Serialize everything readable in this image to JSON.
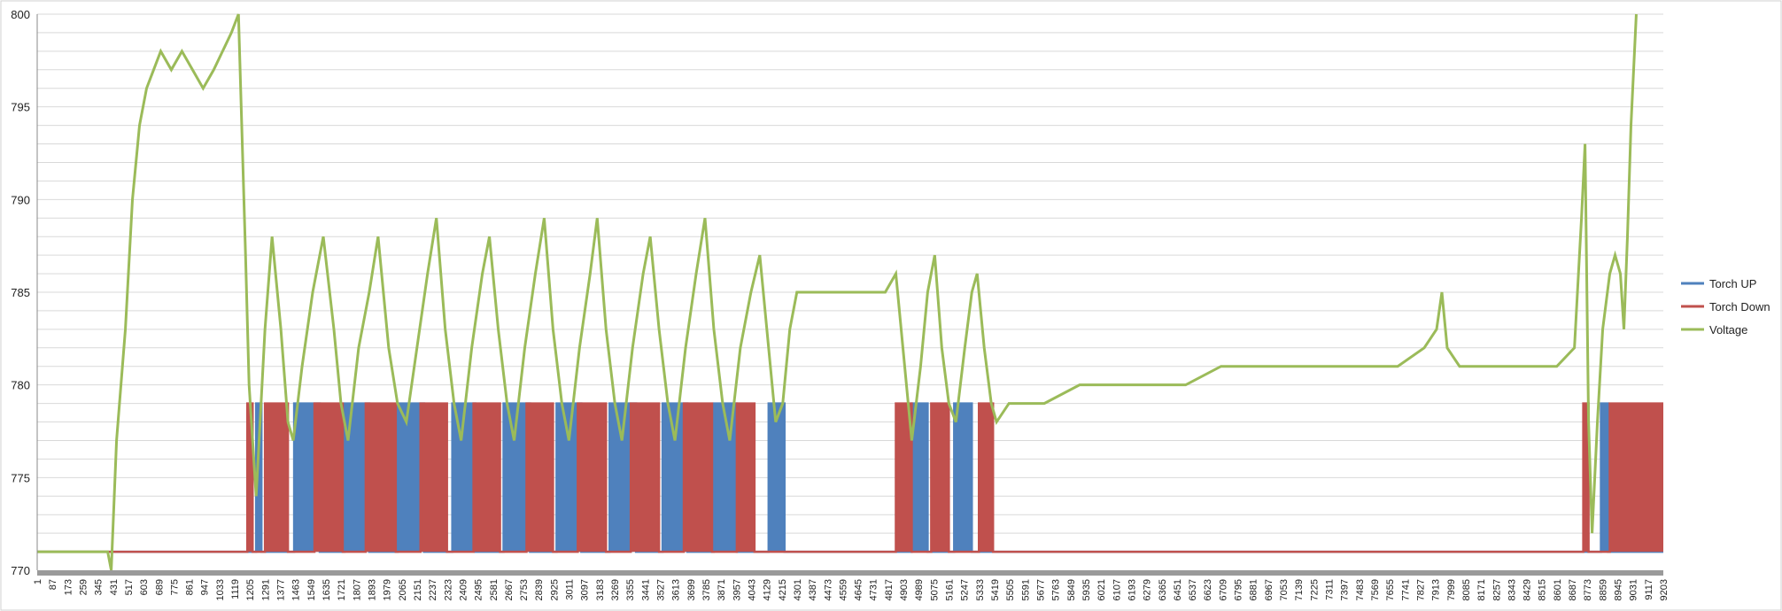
{
  "chart_data": {
    "type": "line",
    "title": "",
    "xlabel": "",
    "ylabel": "",
    "ylim": [
      770,
      800
    ],
    "yticks": [
      770,
      775,
      780,
      785,
      790,
      795,
      800
    ],
    "xlim": [
      1,
      9203
    ],
    "xticks": [
      1,
      87,
      173,
      259,
      345,
      431,
      517,
      603,
      689,
      775,
      861,
      947,
      1033,
      1119,
      1205,
      1291,
      1377,
      1463,
      1549,
      1635,
      1721,
      1807,
      1893,
      1979,
      2065,
      2151,
      2237,
      2323,
      2409,
      2495,
      2581,
      2667,
      2753,
      2839,
      2925,
      3011,
      3097,
      3183,
      3269,
      3355,
      3441,
      3527,
      3613,
      3699,
      3785,
      3871,
      3957,
      4043,
      4129,
      4215,
      4301,
      4387,
      4473,
      4559,
      4645,
      4731,
      4817,
      4903,
      4989,
      5075,
      5161,
      5247,
      5333,
      5419,
      5505,
      5591,
      5677,
      5763,
      5849,
      5935,
      6021,
      6107,
      6193,
      6279,
      6365,
      6451,
      6537,
      6623,
      6709,
      6795,
      6881,
      6967,
      7053,
      7139,
      7225,
      7311,
      7397,
      7483,
      7569,
      7655,
      7741,
      7827,
      7913,
      7999,
      8085,
      8171,
      8257,
      8343,
      8429,
      8515,
      8601,
      8687,
      8773,
      8859,
      8945,
      9031,
      9117,
      9203
    ],
    "grid": true,
    "legend": "right",
    "series": [
      {
        "name": "Torch UP",
        "color": "#4f81bd",
        "points": [
          [
            1,
            771
          ],
          [
            1240,
            771
          ],
          [
            1240,
            779
          ],
          [
            1270,
            779
          ],
          [
            1270,
            771
          ],
          [
            1455,
            771
          ],
          [
            1455,
            779
          ],
          [
            1600,
            779
          ],
          [
            1600,
            771
          ],
          [
            1740,
            771
          ],
          [
            1740,
            779
          ],
          [
            1880,
            779
          ],
          [
            1880,
            771
          ],
          [
            2040,
            771
          ],
          [
            2040,
            779
          ],
          [
            2190,
            779
          ],
          [
            2190,
            771
          ],
          [
            2350,
            771
          ],
          [
            2350,
            779
          ],
          [
            2480,
            779
          ],
          [
            2480,
            771
          ],
          [
            2640,
            771
          ],
          [
            2640,
            779
          ],
          [
            2790,
            779
          ],
          [
            2790,
            771
          ],
          [
            2940,
            771
          ],
          [
            2940,
            779
          ],
          [
            3080,
            779
          ],
          [
            3080,
            771
          ],
          [
            3240,
            771
          ],
          [
            3240,
            779
          ],
          [
            3390,
            779
          ],
          [
            3390,
            771
          ],
          [
            3540,
            771
          ],
          [
            3540,
            779
          ],
          [
            3680,
            779
          ],
          [
            3680,
            771
          ],
          [
            3830,
            771
          ],
          [
            3830,
            779
          ],
          [
            3960,
            779
          ],
          [
            3960,
            771
          ],
          [
            4140,
            771
          ],
          [
            4140,
            779
          ],
          [
            4230,
            779
          ],
          [
            4230,
            771
          ],
          [
            4950,
            771
          ],
          [
            4950,
            779
          ],
          [
            5040,
            779
          ],
          [
            5040,
            771
          ],
          [
            5190,
            771
          ],
          [
            5190,
            779
          ],
          [
            5290,
            779
          ],
          [
            5290,
            771
          ],
          [
            8850,
            771
          ],
          [
            8850,
            779
          ],
          [
            8890,
            779
          ],
          [
            8890,
            771
          ],
          [
            9203,
            771
          ]
        ]
      },
      {
        "name": "Torch Down",
        "color": "#c0504d",
        "points": [
          [
            1,
            771
          ],
          [
            1190,
            771
          ],
          [
            1190,
            779
          ],
          [
            1220,
            779
          ],
          [
            1220,
            771
          ],
          [
            1290,
            771
          ],
          [
            1290,
            779
          ],
          [
            1420,
            779
          ],
          [
            1420,
            771
          ],
          [
            1570,
            771
          ],
          [
            1570,
            779
          ],
          [
            1730,
            779
          ],
          [
            1730,
            771
          ],
          [
            1860,
            771
          ],
          [
            1860,
            779
          ],
          [
            2030,
            779
          ],
          [
            2030,
            771
          ],
          [
            2170,
            771
          ],
          [
            2170,
            779
          ],
          [
            2320,
            779
          ],
          [
            2320,
            771
          ],
          [
            2470,
            771
          ],
          [
            2470,
            779
          ],
          [
            2620,
            779
          ],
          [
            2620,
            771
          ],
          [
            2770,
            771
          ],
          [
            2770,
            779
          ],
          [
            2920,
            779
          ],
          [
            2920,
            771
          ],
          [
            3060,
            771
          ],
          [
            3060,
            779
          ],
          [
            3220,
            779
          ],
          [
            3220,
            771
          ],
          [
            3360,
            771
          ],
          [
            3360,
            779
          ],
          [
            3520,
            779
          ],
          [
            3520,
            771
          ],
          [
            3660,
            771
          ],
          [
            3660,
            779
          ],
          [
            3820,
            779
          ],
          [
            3820,
            771
          ],
          [
            3960,
            771
          ],
          [
            3960,
            779
          ],
          [
            4060,
            779
          ],
          [
            4060,
            771
          ],
          [
            4860,
            771
          ],
          [
            4860,
            779
          ],
          [
            4950,
            779
          ],
          [
            4950,
            771
          ],
          [
            5060,
            771
          ],
          [
            5060,
            779
          ],
          [
            5160,
            779
          ],
          [
            5160,
            771
          ],
          [
            5330,
            771
          ],
          [
            5330,
            779
          ],
          [
            5410,
            779
          ],
          [
            5410,
            771
          ],
          [
            8750,
            771
          ],
          [
            8750,
            779
          ],
          [
            8780,
            779
          ],
          [
            8780,
            771
          ],
          [
            8900,
            771
          ],
          [
            8900,
            779
          ],
          [
            9203,
            779
          ]
        ]
      },
      {
        "name": "Voltage",
        "color": "#9bbb59",
        "points": [
          [
            1,
            771
          ],
          [
            400,
            771
          ],
          [
            420,
            770
          ],
          [
            450,
            777
          ],
          [
            500,
            783
          ],
          [
            540,
            790
          ],
          [
            580,
            794
          ],
          [
            620,
            796
          ],
          [
            660,
            797
          ],
          [
            700,
            798
          ],
          [
            760,
            797
          ],
          [
            820,
            798
          ],
          [
            880,
            797
          ],
          [
            940,
            796
          ],
          [
            1000,
            797
          ],
          [
            1050,
            798
          ],
          [
            1100,
            799
          ],
          [
            1140,
            800
          ],
          [
            1180,
            787
          ],
          [
            1200,
            780
          ],
          [
            1240,
            774
          ],
          [
            1290,
            783
          ],
          [
            1330,
            788
          ],
          [
            1380,
            783
          ],
          [
            1420,
            778
          ],
          [
            1450,
            777
          ],
          [
            1500,
            781
          ],
          [
            1560,
            785
          ],
          [
            1620,
            788
          ],
          [
            1680,
            783
          ],
          [
            1720,
            779
          ],
          [
            1760,
            777
          ],
          [
            1820,
            782
          ],
          [
            1880,
            785
          ],
          [
            1930,
            788
          ],
          [
            1990,
            782
          ],
          [
            2040,
            779
          ],
          [
            2090,
            778
          ],
          [
            2150,
            782
          ],
          [
            2210,
            786
          ],
          [
            2260,
            789
          ],
          [
            2310,
            783
          ],
          [
            2360,
            779
          ],
          [
            2400,
            777
          ],
          [
            2460,
            782
          ],
          [
            2520,
            786
          ],
          [
            2560,
            788
          ],
          [
            2610,
            783
          ],
          [
            2660,
            779
          ],
          [
            2700,
            777
          ],
          [
            2760,
            782
          ],
          [
            2820,
            786
          ],
          [
            2870,
            789
          ],
          [
            2920,
            783
          ],
          [
            2970,
            779
          ],
          [
            3010,
            777
          ],
          [
            3070,
            782
          ],
          [
            3130,
            786
          ],
          [
            3170,
            789
          ],
          [
            3220,
            783
          ],
          [
            3270,
            779
          ],
          [
            3310,
            777
          ],
          [
            3370,
            782
          ],
          [
            3430,
            786
          ],
          [
            3470,
            788
          ],
          [
            3520,
            783
          ],
          [
            3570,
            779
          ],
          [
            3610,
            777
          ],
          [
            3670,
            782
          ],
          [
            3730,
            786
          ],
          [
            3780,
            789
          ],
          [
            3830,
            783
          ],
          [
            3880,
            779
          ],
          [
            3920,
            777
          ],
          [
            3980,
            782
          ],
          [
            4040,
            785
          ],
          [
            4090,
            787
          ],
          [
            4140,
            782
          ],
          [
            4180,
            778
          ],
          [
            4220,
            779
          ],
          [
            4260,
            783
          ],
          [
            4300,
            785
          ],
          [
            4400,
            785
          ],
          [
            4500,
            785
          ],
          [
            4600,
            785
          ],
          [
            4700,
            785
          ],
          [
            4800,
            785
          ],
          [
            4860,
            786
          ],
          [
            4900,
            782
          ],
          [
            4950,
            777
          ],
          [
            5000,
            781
          ],
          [
            5040,
            785
          ],
          [
            5080,
            787
          ],
          [
            5120,
            782
          ],
          [
            5160,
            779
          ],
          [
            5200,
            778
          ],
          [
            5250,
            782
          ],
          [
            5290,
            785
          ],
          [
            5320,
            786
          ],
          [
            5360,
            782
          ],
          [
            5400,
            779
          ],
          [
            5430,
            778
          ],
          [
            5500,
            779
          ],
          [
            5700,
            779
          ],
          [
            5900,
            780
          ],
          [
            6100,
            780
          ],
          [
            6300,
            780
          ],
          [
            6500,
            780
          ],
          [
            6700,
            781
          ],
          [
            6900,
            781
          ],
          [
            7100,
            781
          ],
          [
            7300,
            781
          ],
          [
            7500,
            781
          ],
          [
            7700,
            781
          ],
          [
            7850,
            782
          ],
          [
            7920,
            783
          ],
          [
            7950,
            785
          ],
          [
            7980,
            782
          ],
          [
            8050,
            781
          ],
          [
            8200,
            781
          ],
          [
            8400,
            781
          ],
          [
            8600,
            781
          ],
          [
            8700,
            782
          ],
          [
            8740,
            789
          ],
          [
            8760,
            793
          ],
          [
            8780,
            778
          ],
          [
            8800,
            772
          ],
          [
            8830,
            778
          ],
          [
            8860,
            783
          ],
          [
            8900,
            786
          ],
          [
            8930,
            787
          ],
          [
            8960,
            786
          ],
          [
            8980,
            783
          ],
          [
            9000,
            788
          ],
          [
            9020,
            794
          ],
          [
            9050,
            800
          ]
        ]
      }
    ]
  }
}
